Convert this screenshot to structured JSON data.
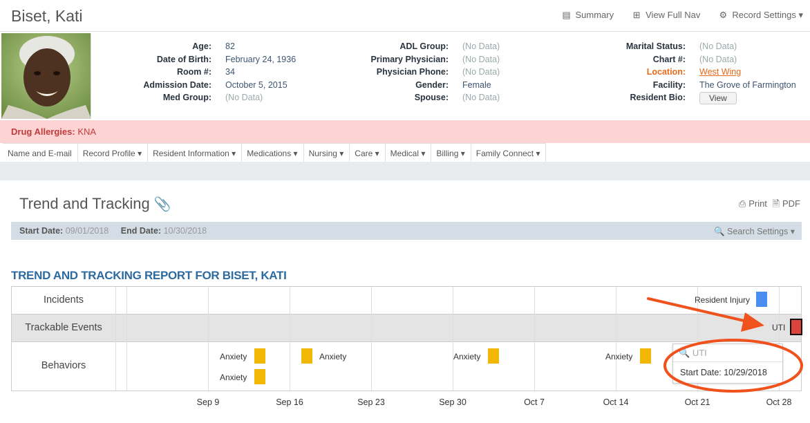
{
  "header": {
    "patient_name": "Biset, Kati",
    "nav": [
      {
        "icon": "summary-icon",
        "glyph": "▤",
        "label": "Summary"
      },
      {
        "icon": "expand-icon",
        "glyph": "⊞",
        "label": "View Full Nav"
      },
      {
        "icon": "gear-icon",
        "glyph": "⚙",
        "label": "Record Settings ▾"
      }
    ]
  },
  "profile": {
    "col1": [
      {
        "label": "Age:",
        "value": "82"
      },
      {
        "label": "Date of Birth:",
        "value": "February 24, 1936"
      },
      {
        "label": "Room #:",
        "value": "34"
      },
      {
        "label": "Admission Date:",
        "value": "October 5, 2015"
      },
      {
        "label": "Med Group:",
        "value": "(No Data)"
      }
    ],
    "col2": [
      {
        "label": "ADL Group:",
        "value": "(No Data)"
      },
      {
        "label": "Primary Physician:",
        "value": "(No Data)"
      },
      {
        "label": "Physician Phone:",
        "value": "(No Data)"
      },
      {
        "label": "Gender:",
        "value": "Female"
      },
      {
        "label": "Spouse:",
        "value": "(No Data)"
      }
    ],
    "col3": [
      {
        "label": "Marital Status:",
        "value": "(No Data)"
      },
      {
        "label": "Chart #:",
        "value": "(No Data)"
      },
      {
        "label": "Location:",
        "value": "West Wing"
      },
      {
        "label": "Facility:",
        "value": "The Grove of Farmington"
      },
      {
        "label": "Resident Bio:",
        "value": "View"
      }
    ]
  },
  "allergy": {
    "label": "Drug Allergies:",
    "value": "KNA"
  },
  "tabs": [
    "Name and E-mail",
    "Record Profile ▾",
    "Resident Information ▾",
    "Medications ▾",
    "Nursing ▾",
    "Care ▾",
    "Medical ▾",
    "Billing ▾",
    "Family Connect ▾"
  ],
  "trend": {
    "title": "Trend and Tracking",
    "print_label": "Print",
    "pdf_label": "PDF",
    "start_label": "Start Date:",
    "start_value": "09/01/2018",
    "end_label": "End Date:",
    "end_value": "10/30/2018",
    "search_settings": "Search Settings ▾",
    "report_title": "TREND AND TRACKING REPORT FOR BISET, KATI",
    "rows": [
      "Incidents",
      "Trackable Events",
      "Behaviors"
    ],
    "events": {
      "incident": "Resident Injury",
      "trackable": "UTI",
      "behavior": "Anxiety"
    },
    "tooltip": {
      "search_placeholder": "UTI",
      "start": "Start Date: 10/29/2018"
    },
    "x_ticks": [
      "Sep 9",
      "Sep 16",
      "Sep 23",
      "Sep 30",
      "Oct 7",
      "Oct 14",
      "Oct 21",
      "Oct 28"
    ],
    "colors": {
      "behavior": "#f2b705",
      "incident": "#4a8cf0",
      "trackable": "#d9453d",
      "annotation": "#f0521e"
    }
  }
}
